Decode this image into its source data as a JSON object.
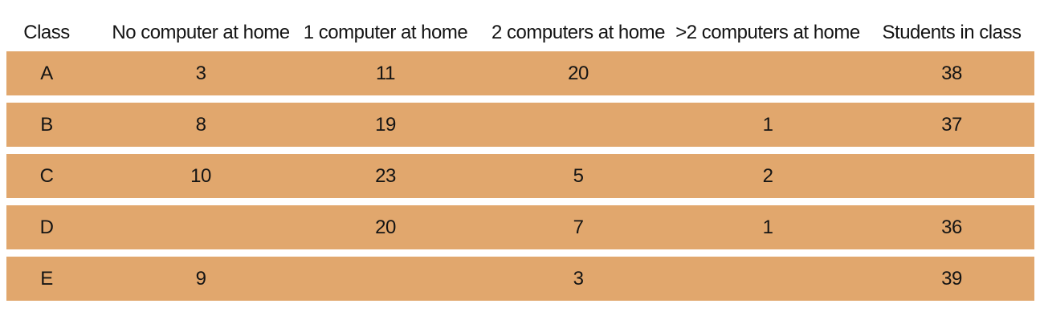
{
  "colors": {
    "band": "#e1a76d",
    "text": "#141414",
    "background": "#ffffff"
  },
  "chart_data": {
    "type": "table",
    "columns": [
      "Class",
      "No computer at home",
      "1 computer at home",
      "2 computers at home",
      ">2 computers at home",
      "Students in class"
    ],
    "rows": [
      [
        "A",
        3,
        11,
        20,
        null,
        38
      ],
      [
        "B",
        8,
        19,
        null,
        1,
        37
      ],
      [
        "C",
        10,
        23,
        5,
        2,
        null
      ],
      [
        "D",
        null,
        20,
        7,
        1,
        36
      ],
      [
        "E",
        9,
        null,
        3,
        null,
        39
      ]
    ]
  }
}
